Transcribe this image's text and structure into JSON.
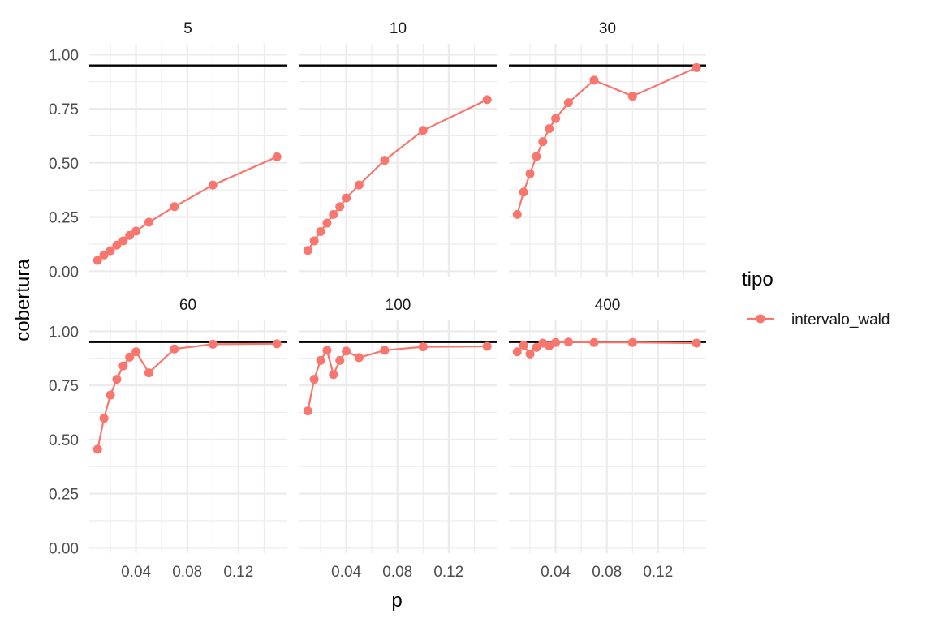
{
  "chart_data": {
    "type": "line",
    "xlabel": "p",
    "ylabel": "cobertura",
    "reference_line": 0.95,
    "reference_color": "#000000",
    "series_color": "#F8766D",
    "grid": true,
    "legend": {
      "title": "tipo",
      "position": "right",
      "entries": [
        "intervalo_wald"
      ]
    },
    "x_ticks": [
      0.04,
      0.08,
      0.12
    ],
    "x_tick_labels": [
      "0.04",
      "0.08",
      "0.12"
    ],
    "y_ticks": [
      0,
      0.25,
      0.5,
      0.75,
      1.0
    ],
    "y_tick_labels": [
      "0.00",
      "0.25",
      "0.50",
      "0.75",
      "1.00"
    ],
    "xlim": [
      0.0035,
      0.1575
    ],
    "ylim": [
      -0.025,
      1.05
    ],
    "x": [
      0.01,
      0.015,
      0.02,
      0.025,
      0.03,
      0.035,
      0.04,
      0.05,
      0.07,
      0.1,
      0.15
    ],
    "panels": [
      {
        "label": "5",
        "values": [
          0.05,
          0.075,
          0.095,
          0.12,
          0.14,
          0.165,
          0.185,
          0.226,
          0.298,
          0.398,
          0.528
        ]
      },
      {
        "label": "10",
        "values": [
          0.096,
          0.14,
          0.183,
          0.222,
          0.262,
          0.298,
          0.338,
          0.398,
          0.512,
          0.65,
          0.792
        ]
      },
      {
        "label": "30",
        "values": [
          0.262,
          0.365,
          0.45,
          0.53,
          0.598,
          0.658,
          0.705,
          0.778,
          0.882,
          0.808,
          0.94
        ]
      },
      {
        "label": "60",
        "values": [
          0.455,
          0.598,
          0.705,
          0.778,
          0.84,
          0.88,
          0.905,
          0.808,
          0.918,
          0.94,
          0.942
        ]
      },
      {
        "label": "100",
        "values": [
          0.632,
          0.778,
          0.865,
          0.912,
          0.8,
          0.865,
          0.908,
          0.878,
          0.912,
          0.928,
          0.93
        ]
      },
      {
        "label": "400",
        "values": [
          0.905,
          0.935,
          0.895,
          0.925,
          0.945,
          0.932,
          0.948,
          0.95,
          0.948,
          0.948,
          0.945
        ]
      }
    ]
  }
}
